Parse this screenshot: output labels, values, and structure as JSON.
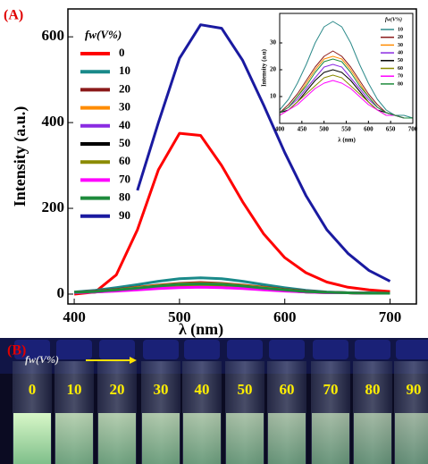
{
  "panel_label": "(A)",
  "chart_data": [
    {
      "type": "line",
      "x_label": "λ (nm)",
      "y_label": "Intensity (a.u.)",
      "legend_title": "fw(V%)",
      "x": [
        400,
        420,
        440,
        460,
        480,
        500,
        520,
        540,
        560,
        580,
        600,
        620,
        640,
        660,
        680,
        700
      ],
      "xlim": [
        394,
        725
      ],
      "xticks": [
        400,
        500,
        600,
        700
      ],
      "ylim": [
        -23,
        665
      ],
      "yticks": [
        0,
        200,
        400,
        600
      ],
      "series": [
        {
          "name": "0",
          "color": "#ff0000",
          "values": [
            0,
            5,
            45,
            150,
            290,
            375,
            370,
            300,
            215,
            140,
            85,
            50,
            28,
            16,
            10,
            6
          ]
        },
        {
          "name": "10",
          "color": "#1a8a8a",
          "values": [
            5,
            9,
            15,
            22,
            30,
            36,
            38,
            36,
            30,
            22,
            15,
            9,
            5,
            3,
            3,
            2
          ]
        },
        {
          "name": "20",
          "color": "#8b1a1a",
          "values": [
            4,
            7,
            11,
            16,
            21,
            25,
            27,
            25,
            21,
            16,
            11,
            7,
            4,
            3,
            2,
            2
          ]
        },
        {
          "name": "30",
          "color": "#ff8c00",
          "values": [
            4,
            6,
            10,
            15,
            20,
            24,
            25,
            24,
            20,
            15,
            10,
            6,
            4,
            3,
            2,
            2
          ]
        },
        {
          "name": "40",
          "color": "#8a2be2",
          "values": [
            4,
            6,
            9,
            13,
            17,
            21,
            22,
            21,
            17,
            13,
            9,
            6,
            4,
            3,
            2,
            2
          ]
        },
        {
          "name": "50",
          "color": "#000000",
          "values": [
            4,
            5,
            8,
            12,
            16,
            19,
            20,
            19,
            16,
            12,
            8,
            5,
            4,
            3,
            2,
            2
          ]
        },
        {
          "name": "60",
          "color": "#8b8b00",
          "values": [
            3,
            5,
            8,
            11,
            14,
            17,
            18,
            17,
            14,
            11,
            8,
            5,
            3,
            3,
            2,
            2
          ]
        },
        {
          "name": "70",
          "color": "#ff00ff",
          "values": [
            3,
            5,
            7,
            10,
            13,
            15,
            16,
            15,
            13,
            10,
            7,
            5,
            3,
            3,
            2,
            2
          ]
        },
        {
          "name": "80",
          "color": "#1e8b3c",
          "values": [
            4,
            6,
            10,
            14,
            19,
            23,
            24,
            23,
            19,
            14,
            10,
            6,
            4,
            3,
            2,
            2
          ]
        },
        {
          "name": "90",
          "color": "#1a1aa0",
          "values": [
            null,
            null,
            null,
            242,
            400,
            550,
            628,
            620,
            545,
            440,
            330,
            230,
            150,
            95,
            55,
            30
          ]
        }
      ]
    },
    {
      "type": "line",
      "x_label": "λ (nm)",
      "y_label": "Intensity (a.u)",
      "legend_title": "fw(V%)",
      "x": [
        400,
        420,
        440,
        460,
        480,
        500,
        520,
        540,
        560,
        580,
        600,
        620,
        640,
        660,
        680,
        700
      ],
      "xlim": [
        400,
        700
      ],
      "xticks": [
        400,
        450,
        500,
        550,
        600,
        650,
        700
      ],
      "ylim": [
        0,
        41
      ],
      "yticks": [
        10,
        20,
        30
      ],
      "series": [
        {
          "name": "10",
          "color": "#2e8b8b",
          "values": [
            5,
            9,
            15,
            22,
            30,
            36,
            38,
            36,
            30,
            22,
            15,
            9,
            5,
            3,
            3,
            2
          ]
        },
        {
          "name": "20",
          "color": "#8b1a1a",
          "values": [
            4,
            7,
            11,
            16,
            21,
            25,
            27,
            25,
            21,
            16,
            11,
            7,
            4,
            3,
            2,
            2
          ]
        },
        {
          "name": "30",
          "color": "#ff8c00",
          "values": [
            4,
            6,
            10,
            15,
            20,
            24,
            25,
            24,
            20,
            15,
            10,
            6,
            4,
            3,
            2,
            2
          ]
        },
        {
          "name": "40",
          "color": "#8a2be2",
          "values": [
            4,
            6,
            9,
            13,
            17,
            21,
            22,
            21,
            17,
            13,
            9,
            6,
            4,
            3,
            2,
            2
          ]
        },
        {
          "name": "50",
          "color": "#000000",
          "values": [
            4,
            5,
            8,
            12,
            16,
            19,
            20,
            19,
            16,
            12,
            8,
            5,
            4,
            3,
            2,
            2
          ]
        },
        {
          "name": "60",
          "color": "#8b8b00",
          "values": [
            3,
            5,
            8,
            11,
            14,
            17,
            18,
            17,
            14,
            11,
            8,
            5,
            3,
            3,
            2,
            2
          ]
        },
        {
          "name": "70",
          "color": "#ff00ff",
          "values": [
            3,
            5,
            7,
            10,
            13,
            15,
            16,
            15,
            13,
            10,
            7,
            5,
            3,
            3,
            2,
            2
          ]
        },
        {
          "name": "80",
          "color": "#1e8b3c",
          "values": [
            4,
            6,
            10,
            14,
            19,
            23,
            24,
            23,
            19,
            14,
            10,
            6,
            4,
            3,
            2,
            2
          ]
        }
      ]
    }
  ],
  "photo": {
    "label": "(B)",
    "arrow_label": "fw(V%)",
    "vials": [
      "0",
      "10",
      "20",
      "30",
      "40",
      "50",
      "60",
      "70",
      "80",
      "90"
    ]
  }
}
